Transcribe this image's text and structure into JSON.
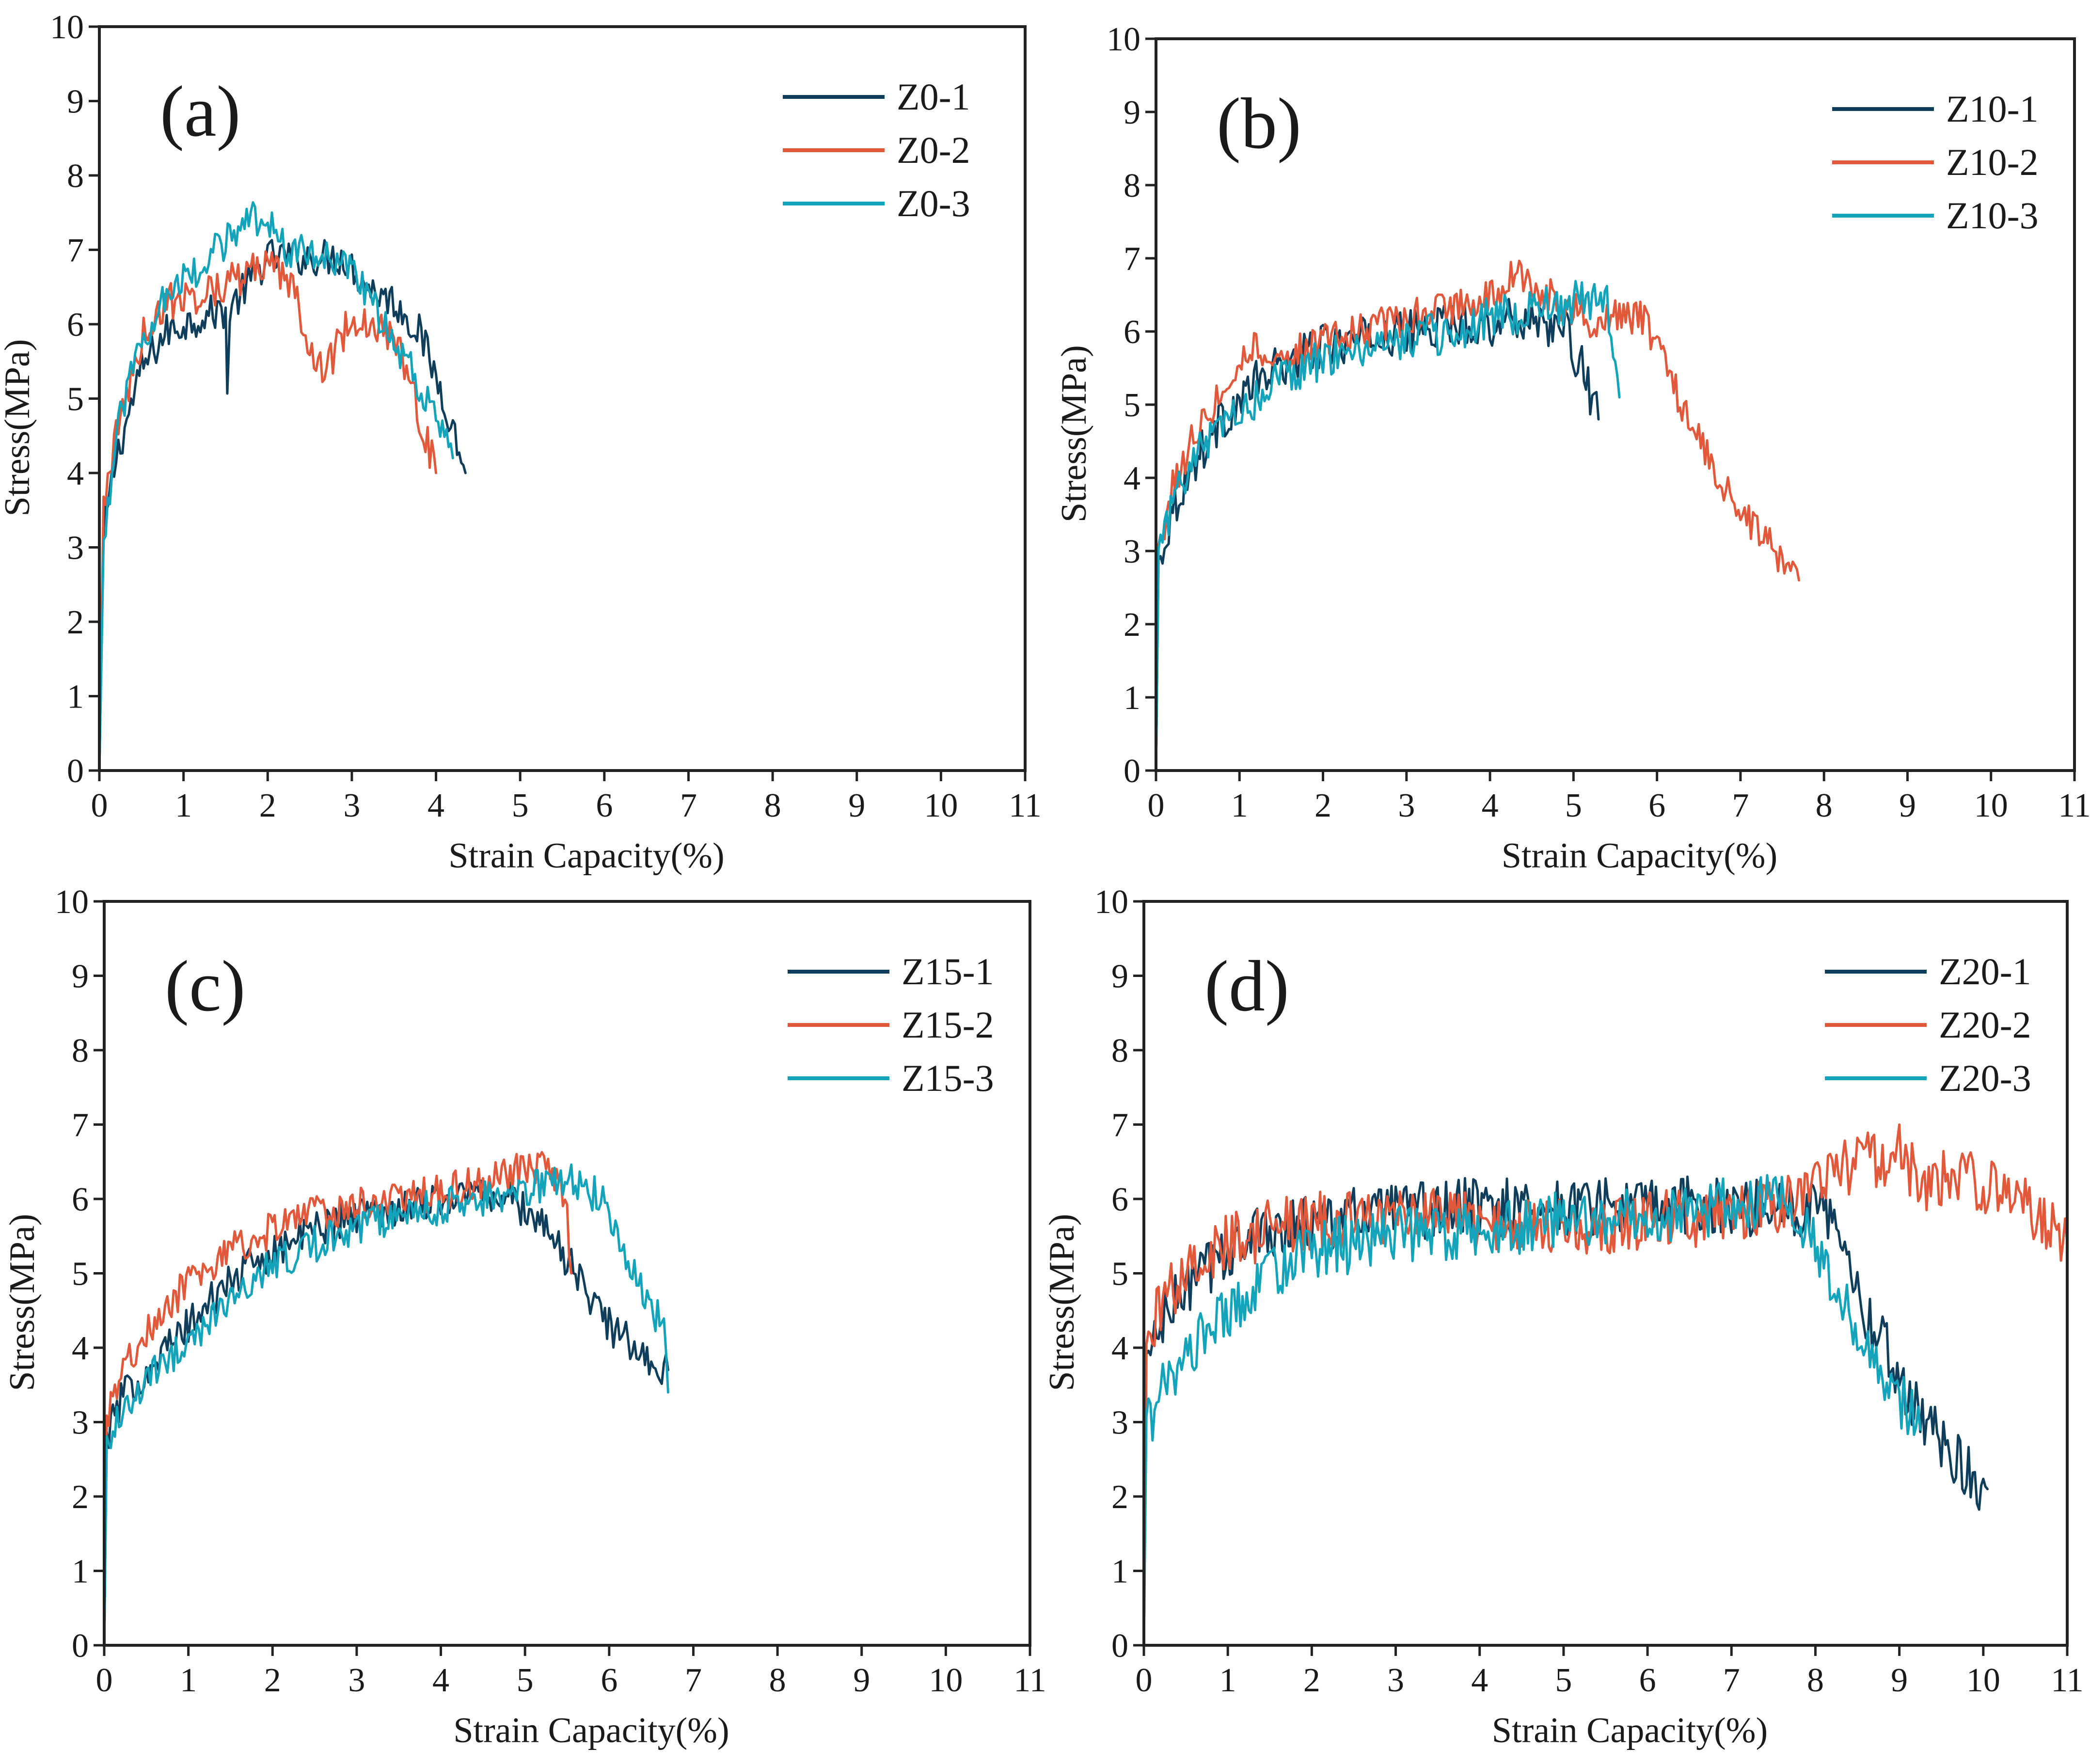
{
  "figure": {
    "colors": {
      "dark": "#0f3d5c",
      "red": "#e2583a",
      "cyan": "#13a3bb"
    }
  },
  "chart_data": [
    {
      "type": "line",
      "panel_label": "(a)",
      "xlabel": "Strain Capacity(%)",
      "ylabel": "Stress(MPa)",
      "xlim": [
        0,
        11
      ],
      "ylim": [
        0,
        10
      ],
      "xticks": [
        "0",
        "1",
        "2",
        "3",
        "4",
        "5",
        "6",
        "7",
        "8",
        "9",
        "10",
        "11"
      ],
      "yticks": [
        "0",
        "1",
        "2",
        "3",
        "4",
        "5",
        "6",
        "7",
        "8",
        "9",
        "10"
      ],
      "legend_position": "top-right",
      "series": [
        {
          "name": "Z0-1",
          "color": "#0f3d5c",
          "noise": 0.25,
          "x": [
            0,
            0.05,
            0.2,
            0.5,
            0.8,
            1.2,
            1.5,
            1.52,
            1.55,
            2.0,
            2.5,
            2.9,
            3.2,
            3.5,
            3.8,
            4.1,
            4.35
          ],
          "y": [
            0,
            3.2,
            4.2,
            5.4,
            5.9,
            6.1,
            6.2,
            5.0,
            6.2,
            6.9,
            6.9,
            6.9,
            6.5,
            6.3,
            5.9,
            5.0,
            4.0
          ]
        },
        {
          "name": "Z0-2",
          "color": "#e2583a",
          "noise": 0.25,
          "x": [
            0,
            0.05,
            0.2,
            0.5,
            0.8,
            1.2,
            1.6,
            2.0,
            2.3,
            2.6,
            2.75,
            3.0,
            3.3,
            3.6,
            3.85,
            4.0
          ],
          "y": [
            0,
            3.6,
            4.5,
            5.8,
            6.3,
            6.4,
            6.6,
            6.8,
            6.5,
            5.4,
            5.5,
            6.1,
            6.0,
            5.6,
            4.6,
            4.0
          ]
        },
        {
          "name": "Z0-3",
          "color": "#13a3bb",
          "noise": 0.25,
          "x": [
            0,
            0.05,
            0.2,
            0.5,
            0.8,
            1.2,
            1.6,
            1.95,
            2.2,
            2.6,
            3.0,
            3.4,
            3.8,
            4.2
          ],
          "y": [
            0,
            3.0,
            4.5,
            5.8,
            6.4,
            6.8,
            7.2,
            7.5,
            7.0,
            6.9,
            6.7,
            6.0,
            5.2,
            4.2
          ]
        }
      ]
    },
    {
      "type": "line",
      "panel_label": "(b)",
      "xlabel": "Strain Capacity(%)",
      "ylabel": "Stress(MPa)",
      "xlim": [
        0,
        11
      ],
      "ylim": [
        0,
        10
      ],
      "xticks": [
        "0",
        "1",
        "2",
        "3",
        "4",
        "5",
        "6",
        "7",
        "8",
        "9",
        "10",
        "11"
      ],
      "yticks": [
        "0",
        "1",
        "2",
        "3",
        "4",
        "5",
        "6",
        "7",
        "8",
        "9",
        "10"
      ],
      "legend_position": "top-right",
      "series": [
        {
          "name": "Z10-1",
          "color": "#0f3d5c",
          "noise": 0.3,
          "x": [
            0,
            0.03,
            0.2,
            0.5,
            0.8,
            1.2,
            1.6,
            2.0,
            2.5,
            3.0,
            3.5,
            4.0,
            4.5,
            4.9,
            5.1,
            5.3
          ],
          "y": [
            0,
            2.8,
            3.6,
            4.3,
            4.8,
            5.3,
            5.6,
            5.8,
            5.9,
            6.0,
            6.1,
            6.1,
            6.2,
            6.0,
            5.5,
            4.8
          ]
        },
        {
          "name": "Z10-2",
          "color": "#e2583a",
          "noise": 0.25,
          "x": [
            0,
            0.03,
            0.2,
            0.5,
            0.8,
            1.1,
            1.5,
            2.0,
            2.5,
            3.0,
            3.5,
            4.0,
            4.35,
            4.8,
            5.3,
            5.55,
            5.8,
            6.0,
            6.3,
            6.6,
            7.0,
            7.4,
            7.7
          ],
          "y": [
            0,
            3.0,
            3.9,
            4.7,
            5.2,
            5.8,
            5.6,
            5.9,
            6.0,
            6.2,
            6.3,
            6.5,
            6.8,
            6.4,
            6.1,
            6.2,
            6.2,
            5.8,
            5.0,
            4.3,
            3.5,
            3.0,
            2.6
          ]
        },
        {
          "name": "Z10-3",
          "color": "#13a3bb",
          "noise": 0.3,
          "x": [
            0,
            0.03,
            0.2,
            0.5,
            0.8,
            1.2,
            1.6,
            2.0,
            2.5,
            3.0,
            3.5,
            4.0,
            4.5,
            5.0,
            5.4,
            5.55
          ],
          "y": [
            0,
            2.9,
            3.7,
            4.3,
            4.8,
            5.1,
            5.4,
            5.6,
            5.8,
            5.9,
            6.0,
            6.2,
            6.3,
            6.4,
            6.5,
            5.1
          ]
        }
      ]
    },
    {
      "type": "line",
      "panel_label": "(c)",
      "xlabel": "Strain Capacity(%)",
      "ylabel": "Stress(MPa)",
      "xlim": [
        0,
        11
      ],
      "ylim": [
        0,
        10
      ],
      "xticks": [
        "0",
        "1",
        "2",
        "3",
        "4",
        "5",
        "6",
        "7",
        "8",
        "9",
        "10",
        "11"
      ],
      "yticks": [
        "0",
        "1",
        "2",
        "3",
        "4",
        "5",
        "6",
        "7",
        "8",
        "9",
        "10"
      ],
      "legend_position": "top-right",
      "series": [
        {
          "name": "Z15-1",
          "color": "#0f3d5c",
          "noise": 0.25,
          "x": [
            0,
            0.03,
            0.2,
            0.5,
            1.0,
            1.5,
            2.0,
            2.5,
            3.0,
            3.5,
            4.0,
            4.5,
            4.8,
            5.2,
            5.6,
            6.0,
            6.4,
            6.7
          ],
          "y": [
            0,
            2.8,
            3.3,
            3.7,
            4.3,
            4.9,
            5.3,
            5.6,
            5.8,
            5.9,
            6.0,
            6.1,
            6.0,
            5.7,
            5.0,
            4.3,
            3.9,
            3.7
          ]
        },
        {
          "name": "Z15-2",
          "color": "#e2583a",
          "noise": 0.25,
          "x": [
            0,
            0.03,
            0.2,
            0.5,
            1.0,
            1.5,
            2.0,
            2.5,
            3.0,
            3.5,
            4.0,
            4.5,
            5.0,
            5.3,
            5.5,
            5.55
          ],
          "y": [
            0,
            3.0,
            3.6,
            4.2,
            4.9,
            5.3,
            5.6,
            5.8,
            5.9,
            6.0,
            6.1,
            6.2,
            6.4,
            6.5,
            5.8,
            5.0
          ]
        },
        {
          "name": "Z15-3",
          "color": "#13a3bb",
          "noise": 0.25,
          "x": [
            0,
            0.03,
            0.2,
            0.5,
            1.0,
            1.5,
            2.0,
            2.5,
            3.0,
            3.5,
            4.0,
            4.5,
            5.0,
            5.5,
            5.9,
            6.2,
            6.5,
            6.65,
            6.7
          ],
          "y": [
            0,
            2.7,
            3.2,
            3.6,
            4.1,
            4.6,
            5.1,
            5.4,
            5.6,
            5.8,
            5.9,
            6.0,
            6.1,
            6.3,
            6.0,
            5.3,
            4.6,
            4.2,
            3.4
          ]
        }
      ]
    },
    {
      "type": "line",
      "panel_label": "(d)",
      "xlabel": "Strain Capacity(%)",
      "ylabel": "Stress(MPa)",
      "xlim": [
        0,
        11
      ],
      "ylim": [
        0,
        10
      ],
      "xticks": [
        "0",
        "1",
        "2",
        "3",
        "4",
        "5",
        "6",
        "7",
        "8",
        "9",
        "10",
        "11"
      ],
      "yticks": [
        "0",
        "1",
        "2",
        "3",
        "4",
        "5",
        "6",
        "7",
        "8",
        "9",
        "10"
      ],
      "legend_position": "top-right",
      "series": [
        {
          "name": "Z20-1",
          "color": "#0f3d5c",
          "noise": 0.4,
          "x": [
            0,
            0.03,
            0.2,
            0.5,
            1.0,
            1.5,
            2.0,
            3.0,
            4.0,
            5.0,
            6.0,
            7.0,
            7.5,
            7.8,
            8.0,
            8.3,
            8.6,
            9.0,
            9.4,
            9.8,
            10.05
          ],
          "y": [
            0,
            3.8,
            4.3,
            4.8,
            5.3,
            5.6,
            5.7,
            5.8,
            5.9,
            5.9,
            5.9,
            5.9,
            5.9,
            5.8,
            6.1,
            5.6,
            4.5,
            3.6,
            2.9,
            2.4,
            2.1
          ]
        },
        {
          "name": "Z20-2",
          "color": "#e2583a",
          "noise": 0.4,
          "x": [
            0,
            0.03,
            0.2,
            0.5,
            1.0,
            1.5,
            2.0,
            3.0,
            4.0,
            5.0,
            6.0,
            7.0,
            7.5,
            8.0,
            8.5,
            9.0,
            9.3,
            9.5,
            10.0,
            10.5,
            11.0
          ],
          "y": [
            0,
            3.9,
            4.6,
            5.0,
            5.4,
            5.6,
            5.7,
            5.8,
            5.7,
            5.6,
            5.7,
            5.8,
            5.9,
            6.2,
            6.5,
            6.6,
            6.1,
            6.3,
            6.2,
            5.9,
            5.4
          ]
        },
        {
          "name": "Z20-3",
          "color": "#13a3bb",
          "noise": 0.4,
          "x": [
            0,
            0.03,
            0.2,
            0.5,
            1.0,
            1.5,
            2.0,
            3.0,
            4.0,
            5.0,
            6.0,
            7.0,
            7.5,
            7.8,
            8.1,
            8.4,
            8.8,
            9.0,
            9.25
          ],
          "y": [
            0,
            2.9,
            3.4,
            3.9,
            4.5,
            5.0,
            5.3,
            5.5,
            5.6,
            5.7,
            5.8,
            5.9,
            6.0,
            5.8,
            5.2,
            4.5,
            3.6,
            3.3,
            2.9
          ]
        }
      ]
    }
  ]
}
